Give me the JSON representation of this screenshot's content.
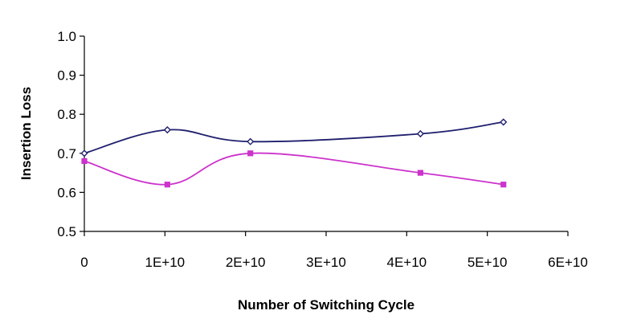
{
  "chart_data": {
    "type": "line",
    "title": "",
    "xlabel": "Number of Switching Cycle",
    "ylabel": "Insertion Loss",
    "xlim": [
      0,
      60000000000
    ],
    "ylim": [
      0.5,
      1.0
    ],
    "x_ticks": [
      0,
      10000000000,
      20000000000,
      30000000000,
      40000000000,
      50000000000,
      60000000000
    ],
    "x_tick_labels": [
      "0",
      "1E+10",
      "2E+10",
      "3E+10",
      "4E+10",
      "5E+10",
      "6E+10"
    ],
    "y_ticks": [
      0.5,
      0.6,
      0.7,
      0.8,
      0.9,
      1.0
    ],
    "y_tick_labels": [
      "0.5",
      "0.6",
      "0.7",
      "0.8",
      "0.9",
      "1.0"
    ],
    "grid": false,
    "legend": "none",
    "series": [
      {
        "color": "#1f1f6e",
        "marker": "diamond",
        "x": [
          0,
          10300000000,
          20600000000,
          41700000000,
          52000000000
        ],
        "y": [
          0.7,
          0.76,
          0.73,
          0.75,
          0.78
        ]
      },
      {
        "color": "#cc33cc",
        "marker": "square",
        "x": [
          0,
          10300000000,
          20600000000,
          41700000000,
          52000000000
        ],
        "y": [
          0.68,
          0.62,
          0.7,
          0.65,
          0.62
        ]
      }
    ]
  }
}
